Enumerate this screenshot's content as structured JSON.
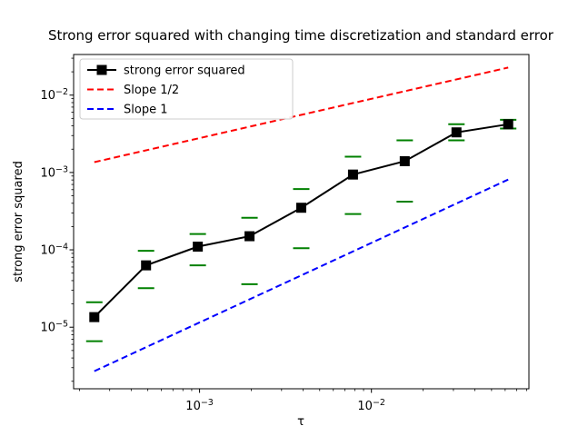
{
  "chart_data": {
    "type": "line",
    "title": "Strong error squared with changing time discretization and standard error",
    "xlabel": "τ",
    "ylabel": "strong error squared",
    "x_scale": "log",
    "y_scale": "log",
    "xlim": [
      0.000185,
      0.0825
    ],
    "ylim": [
      1.6e-06,
      0.0335
    ],
    "grid": false,
    "x": [
      0.000244140625,
      0.00048828125,
      0.0009765625,
      0.001953125,
      0.00390625,
      0.0078125,
      0.015625,
      0.03125,
      0.0625
    ],
    "series": [
      {
        "name": "strong error squared",
        "color": "#000000",
        "style": "solid",
        "marker": "square",
        "values": [
          1.35e-05,
          6.3e-05,
          0.00011,
          0.00015,
          0.00035,
          0.00094,
          0.0014,
          0.0033,
          0.0042
        ]
      },
      {
        "name": "Slope 1/2",
        "color": "#ff0000",
        "style": "dashed",
        "x": [
          0.000244140625,
          0.0625
        ],
        "values": [
          0.00136,
          0.0227
        ]
      },
      {
        "name": "Slope 1",
        "color": "#0000ff",
        "style": "dashed",
        "x": [
          0.000244140625,
          0.0625
        ],
        "values": [
          2.7e-06,
          0.00081
        ]
      }
    ],
    "error_bars": {
      "color": "#008000",
      "cap_style": "horizontal-caps-only",
      "upper": [
        2.1e-05,
        9.7e-05,
        0.00016,
        0.00026,
        0.00061,
        0.0016,
        0.0026,
        0.0042,
        0.0048
      ],
      "lower": [
        6.6e-06,
        3.2e-05,
        6.3e-05,
        3.6e-05,
        0.000105,
        0.00029,
        0.00042,
        0.0026,
        0.0037
      ]
    },
    "x_ticks": [
      {
        "value": 0.001,
        "base": "10",
        "exp": "−3"
      },
      {
        "value": 0.01,
        "base": "10",
        "exp": "−2"
      }
    ],
    "y_ticks": [
      {
        "value": 0.01,
        "base": "10",
        "exp": "−2"
      },
      {
        "value": 0.001,
        "base": "10",
        "exp": "−3"
      },
      {
        "value": 0.0001,
        "base": "10",
        "exp": "−4"
      },
      {
        "value": 1e-05,
        "base": "10",
        "exp": "−5"
      }
    ],
    "legend": {
      "position": "upper left",
      "entries": [
        "strong error squared",
        "Slope 1/2",
        "Slope 1"
      ]
    }
  }
}
